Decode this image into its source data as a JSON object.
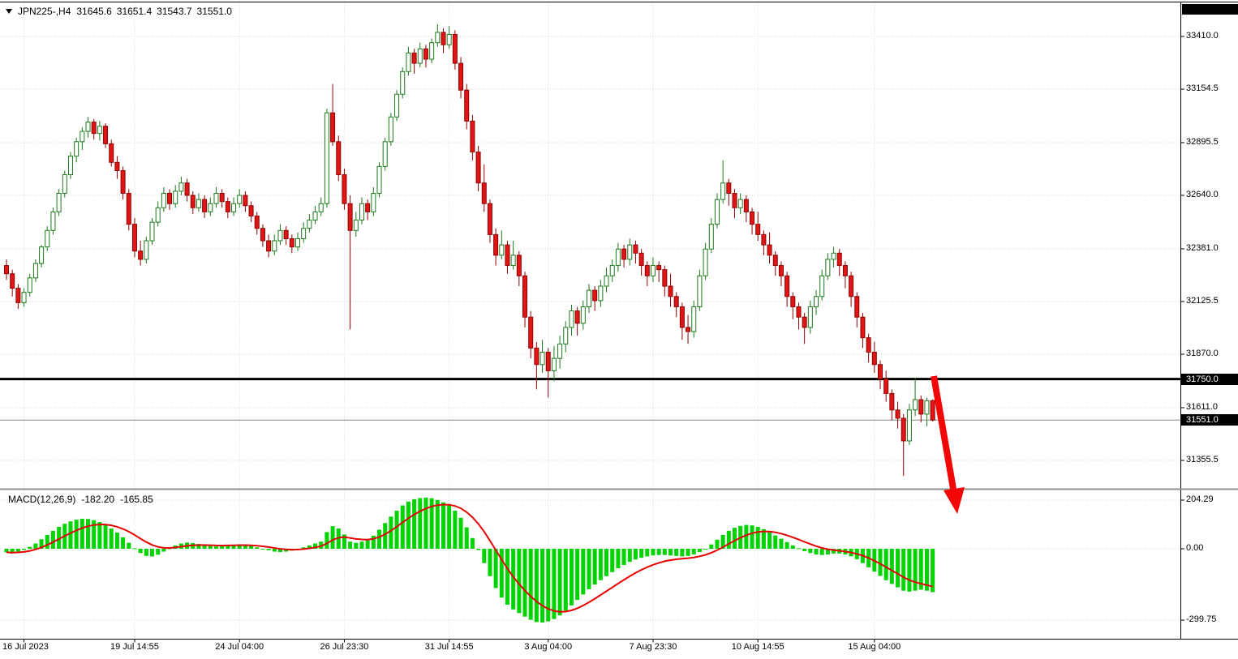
{
  "ui": {
    "header": {
      "symbol_period": "JPN225-,H4",
      "open": "31645.6",
      "high": "31651.4",
      "low": "31543.7",
      "close": "31551.0"
    },
    "hline_badge": "31750.0",
    "current_price_badge": "31551.0",
    "macd": {
      "title": "MACD(12,26,9)",
      "macd_value": "-182.20",
      "signal_value": "-165.85"
    }
  },
  "chart_data": {
    "type": "candlestick",
    "title": "JPN225-,H4",
    "symbol": "JPN225",
    "timeframe": "H4",
    "last_ohlc": {
      "open": 31645.6,
      "high": 31651.4,
      "low": 31543.7,
      "close": 31551.0
    },
    "price_axis_values": [
      33410.0,
      33154.5,
      32895.5,
      32640.0,
      32381.0,
      32125.5,
      31870.0,
      31611.0,
      31355.5
    ],
    "hline": 31750.0,
    "current_price": 31551.0,
    "time_labels": {
      "indices": [
        3,
        22,
        40,
        58,
        76,
        93,
        111,
        129,
        149
      ],
      "labels": [
        "16 Jul 2023",
        "19 Jul 14:55",
        "24 Jul 04:00",
        "26 Jul 23:30",
        "31 Jul 14:55",
        "3 Aug 04:00",
        "7 Aug 23:30",
        "10 Aug 14:55",
        "15 Aug 04:00"
      ]
    },
    "candles": [
      [
        32300,
        32330,
        32230,
        32260
      ],
      [
        32260,
        32280,
        32150,
        32190
      ],
      [
        32190,
        32210,
        32090,
        32120
      ],
      [
        32120,
        32190,
        32100,
        32170
      ],
      [
        32170,
        32260,
        32150,
        32240
      ],
      [
        32240,
        32330,
        32220,
        32310
      ],
      [
        32310,
        32400,
        32290,
        32390
      ],
      [
        32390,
        32490,
        32370,
        32470
      ],
      [
        32470,
        32580,
        32450,
        32560
      ],
      [
        32560,
        32670,
        32540,
        32650
      ],
      [
        32650,
        32760,
        32630,
        32740
      ],
      [
        32740,
        32850,
        32720,
        32830
      ],
      [
        32830,
        32920,
        32800,
        32900
      ],
      [
        32900,
        32970,
        32860,
        32950
      ],
      [
        32950,
        33020,
        32920,
        32995
      ],
      [
        32995,
        33010,
        32910,
        32940
      ],
      [
        32940,
        33000,
        32905,
        32975
      ],
      [
        32975,
        32990,
        32870,
        32890
      ],
      [
        32890,
        32910,
        32780,
        32800
      ],
      [
        32800,
        32830,
        32720,
        32760
      ],
      [
        32760,
        32780,
        32620,
        32650
      ],
      [
        32650,
        32670,
        32470,
        32500
      ],
      [
        32500,
        32530,
        32340,
        32370
      ],
      [
        32370,
        32420,
        32300,
        32330
      ],
      [
        32330,
        32440,
        32310,
        32420
      ],
      [
        32420,
        32530,
        32400,
        32510
      ],
      [
        32510,
        32610,
        32490,
        32580
      ],
      [
        32580,
        32680,
        32560,
        32650
      ],
      [
        32650,
        32670,
        32570,
        32600
      ],
      [
        32600,
        32690,
        32580,
        32660
      ],
      [
        32660,
        32730,
        32640,
        32700
      ],
      [
        32700,
        32720,
        32610,
        32640
      ],
      [
        32640,
        32660,
        32550,
        32580
      ],
      [
        32580,
        32650,
        32560,
        32620
      ],
      [
        32620,
        32640,
        32530,
        32560
      ],
      [
        32560,
        32630,
        32540,
        32600
      ],
      [
        32600,
        32680,
        32580,
        32650
      ],
      [
        32650,
        32670,
        32580,
        32610
      ],
      [
        32610,
        32630,
        32530,
        32560
      ],
      [
        32560,
        32630,
        32540,
        32600
      ],
      [
        32600,
        32670,
        32580,
        32640
      ],
      [
        32640,
        32660,
        32560,
        32590
      ],
      [
        32590,
        32610,
        32510,
        32540
      ],
      [
        32540,
        32560,
        32450,
        32480
      ],
      [
        32480,
        32500,
        32390,
        32420
      ],
      [
        32420,
        32450,
        32340,
        32370
      ],
      [
        32370,
        32450,
        32350,
        32420
      ],
      [
        32420,
        32500,
        32400,
        32470
      ],
      [
        32470,
        32490,
        32400,
        32430
      ],
      [
        32430,
        32450,
        32360,
        32390
      ],
      [
        32390,
        32460,
        32370,
        32430
      ],
      [
        32430,
        32510,
        32410,
        32480
      ],
      [
        32480,
        32550,
        32460,
        32520
      ],
      [
        32520,
        32590,
        32500,
        32560
      ],
      [
        32560,
        32630,
        32540,
        32600
      ],
      [
        32600,
        33060,
        32580,
        33040
      ],
      [
        33040,
        33180,
        32880,
        32900
      ],
      [
        32900,
        32930,
        32710,
        32740
      ],
      [
        32740,
        32770,
        32570,
        32600
      ],
      [
        32600,
        32640,
        31990,
        32470
      ],
      [
        32470,
        32560,
        32440,
        32520
      ],
      [
        32520,
        32630,
        32500,
        32600
      ],
      [
        32600,
        32620,
        32520,
        32560
      ],
      [
        32560,
        32680,
        32540,
        32650
      ],
      [
        32650,
        32800,
        32630,
        32780
      ],
      [
        32780,
        32920,
        32760,
        32900
      ],
      [
        32900,
        33040,
        32880,
        33020
      ],
      [
        33020,
        33150,
        33000,
        33130
      ],
      [
        33130,
        33260,
        33110,
        33240
      ],
      [
        33240,
        33360,
        33220,
        33330
      ],
      [
        33330,
        33350,
        33230,
        33280
      ],
      [
        33280,
        33380,
        33260,
        33350
      ],
      [
        33350,
        33370,
        33260,
        33300
      ],
      [
        33300,
        33400,
        33280,
        33380
      ],
      [
        33380,
        33470,
        33360,
        33430
      ],
      [
        33430,
        33450,
        33330,
        33370
      ],
      [
        33370,
        33460,
        33350,
        33420
      ],
      [
        33420,
        33440,
        33250,
        33280
      ],
      [
        33280,
        33310,
        33110,
        33150
      ],
      [
        33150,
        33180,
        32960,
        33000
      ],
      [
        33000,
        33030,
        32810,
        32850
      ],
      [
        32850,
        32880,
        32660,
        32700
      ],
      [
        32700,
        32790,
        32560,
        32600
      ],
      [
        32600,
        32620,
        32410,
        32450
      ],
      [
        32450,
        32480,
        32300,
        32350
      ],
      [
        32350,
        32470,
        32330,
        32400
      ],
      [
        32400,
        32420,
        32260,
        32300
      ],
      [
        32300,
        32420,
        32280,
        32350
      ],
      [
        32350,
        32370,
        32200,
        32250
      ],
      [
        32250,
        32270,
        32000,
        32050
      ],
      [
        32050,
        32080,
        31850,
        31900
      ],
      [
        31900,
        31930,
        31700,
        31820
      ],
      [
        31820,
        31940,
        31780,
        31880
      ],
      [
        31880,
        31900,
        31660,
        31790
      ],
      [
        31790,
        31910,
        31740,
        31850
      ],
      [
        31850,
        31960,
        31800,
        31920
      ],
      [
        31920,
        32030,
        31880,
        32000
      ],
      [
        32000,
        32110,
        31960,
        32080
      ],
      [
        32080,
        32100,
        31960,
        32020
      ],
      [
        32020,
        32130,
        31990,
        32100
      ],
      [
        32100,
        32210,
        32070,
        32180
      ],
      [
        32180,
        32200,
        32080,
        32130
      ],
      [
        32130,
        32230,
        32100,
        32200
      ],
      [
        32200,
        32290,
        32170,
        32250
      ],
      [
        32250,
        32330,
        32220,
        32300
      ],
      [
        32300,
        32410,
        32270,
        32380
      ],
      [
        32380,
        32400,
        32290,
        32330
      ],
      [
        32330,
        32430,
        32300,
        32400
      ],
      [
        32400,
        32420,
        32310,
        32360
      ],
      [
        32360,
        32380,
        32250,
        32300
      ],
      [
        32300,
        32320,
        32200,
        32250
      ],
      [
        32250,
        32340,
        32220,
        32300
      ],
      [
        32300,
        32320,
        32220,
        32280
      ],
      [
        32280,
        32300,
        32150,
        32200
      ],
      [
        32200,
        32260,
        32100,
        32150
      ],
      [
        32150,
        32170,
        32050,
        32100
      ],
      [
        32100,
        32120,
        31940,
        32000
      ],
      [
        32000,
        32060,
        31920,
        31980
      ],
      [
        31980,
        32130,
        31950,
        32100
      ],
      [
        32100,
        32280,
        32080,
        32250
      ],
      [
        32250,
        32410,
        32230,
        32380
      ],
      [
        32380,
        32530,
        32360,
        32500
      ],
      [
        32500,
        32650,
        32480,
        32620
      ],
      [
        32620,
        32810,
        32600,
        32700
      ],
      [
        32700,
        32720,
        32590,
        32650
      ],
      [
        32650,
        32670,
        32530,
        32580
      ],
      [
        32580,
        32650,
        32550,
        32620
      ],
      [
        32620,
        32640,
        32510,
        32560
      ],
      [
        32560,
        32580,
        32450,
        32500
      ],
      [
        32500,
        32560,
        32420,
        32450
      ],
      [
        32450,
        32470,
        32350,
        32400
      ],
      [
        32400,
        32460,
        32310,
        32350
      ],
      [
        32350,
        32370,
        32250,
        32300
      ],
      [
        32300,
        32320,
        32200,
        32250
      ],
      [
        32250,
        32270,
        32100,
        32150
      ],
      [
        32150,
        32170,
        32040,
        32100
      ],
      [
        32100,
        32120,
        31990,
        32050
      ],
      [
        32050,
        32070,
        31920,
        32000
      ],
      [
        32000,
        32130,
        31970,
        32100
      ],
      [
        32100,
        32180,
        32060,
        32150
      ],
      [
        32150,
        32280,
        32130,
        32250
      ],
      [
        32250,
        32360,
        32230,
        32330
      ],
      [
        32330,
        32390,
        32290,
        32360
      ],
      [
        32360,
        32380,
        32250,
        32300
      ],
      [
        32300,
        32320,
        32190,
        32250
      ],
      [
        32250,
        32270,
        32100,
        32150
      ],
      [
        32150,
        32170,
        32000,
        32050
      ],
      [
        32050,
        32070,
        31900,
        31950
      ],
      [
        31950,
        31970,
        31830,
        31880
      ],
      [
        31880,
        31930,
        31780,
        31820
      ],
      [
        31820,
        31840,
        31700,
        31750
      ],
      [
        31750,
        31790,
        31640,
        31680
      ],
      [
        31680,
        31700,
        31550,
        31600
      ],
      [
        31600,
        31640,
        31510,
        31560
      ],
      [
        31560,
        31580,
        31280,
        31450
      ],
      [
        31450,
        31630,
        31430,
        31600
      ],
      [
        31600,
        31755,
        31570,
        31650
      ],
      [
        31650,
        31670,
        31540,
        31580
      ],
      [
        31580,
        31660,
        31520,
        31645
      ],
      [
        31645.6,
        31651.4,
        31543.7,
        31551.0
      ]
    ],
    "macd": {
      "type": "histogram+signal",
      "params": [
        12,
        26,
        9
      ],
      "axis_values": [
        204.29,
        0,
        -299.75
      ],
      "last_macd": -182.2,
      "last_signal": -165.85,
      "histogram": [
        -15,
        -20,
        -12,
        -5,
        8,
        22,
        40,
        58,
        75,
        92,
        105,
        115,
        122,
        126,
        125,
        120,
        112,
        100,
        85,
        68,
        48,
        25,
        2,
        -18,
        -30,
        -32,
        -25,
        -12,
        2,
        14,
        22,
        26,
        24,
        20,
        16,
        12,
        10,
        12,
        15,
        17,
        18,
        16,
        12,
        6,
        0,
        -6,
        -12,
        -14,
        -12,
        -8,
        -2,
        6,
        14,
        22,
        30,
        70,
        95,
        85,
        60,
        30,
        25,
        30,
        35,
        55,
        80,
        108,
        135,
        160,
        182,
        198,
        208,
        213,
        215,
        212,
        205,
        195,
        182,
        160,
        130,
        90,
        45,
        -5,
        -60,
        -115,
        -165,
        -205,
        -235,
        -255,
        -270,
        -285,
        -298,
        -308,
        -310,
        -305,
        -295,
        -280,
        -260,
        -238,
        -215,
        -192,
        -170,
        -150,
        -132,
        -115,
        -98,
        -82,
        -68,
        -55,
        -45,
        -38,
        -32,
        -28,
        -26,
        -26,
        -28,
        -30,
        -32,
        -30,
        -24,
        -14,
        0,
        18,
        38,
        58,
        75,
        88,
        96,
        100,
        98,
        92,
        82,
        70,
        56,
        42,
        28,
        14,
        2,
        -10,
        -18,
        -24,
        -26,
        -24,
        -20,
        -20,
        -24,
        -32,
        -44,
        -60,
        -78,
        -96,
        -114,
        -132,
        -148,
        -162,
        -176,
        -180,
        -176,
        -172,
        -176,
        -182.2
      ]
    },
    "annotations": {
      "red_arrow": {
        "shaft": [
          [
            1151,
            464
          ],
          [
            1175,
            603
          ]
        ],
        "head": [
          [
            1180,
            634
          ],
          [
            1189,
            601
          ],
          [
            1163,
            605
          ]
        ],
        "color": "#f40606"
      }
    },
    "colors": {
      "bull_fill": "#ffffff",
      "bull_border": "#1a7a1a",
      "bear_fill": "#e01616",
      "bear_border": "#900000",
      "macd_bar": "#00d400",
      "signal_line": "#e80000",
      "grid": "#d9d9d9",
      "hline": "#000000",
      "current_price_line": "#888888",
      "badge_bg": "#000000",
      "badge_text": "#ffffff"
    }
  }
}
